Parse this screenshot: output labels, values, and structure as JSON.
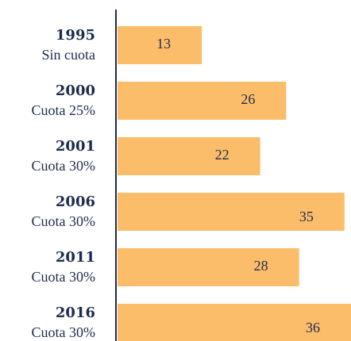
{
  "chart_data": {
    "type": "hbar",
    "categories": [
      {
        "year": "1995",
        "label": "Sin cuota"
      },
      {
        "year": "2000",
        "label": "Cuota 25%"
      },
      {
        "year": "2001",
        "label": "Cuota 30%"
      },
      {
        "year": "2006",
        "label": "Cuota 30%"
      },
      {
        "year": "2011",
        "label": "Cuota 30%"
      },
      {
        "year": "2016",
        "label": "Cuota 30%"
      }
    ],
    "values": [
      13,
      26,
      22,
      35,
      28,
      36
    ],
    "color": "#fcbd6b"
  }
}
